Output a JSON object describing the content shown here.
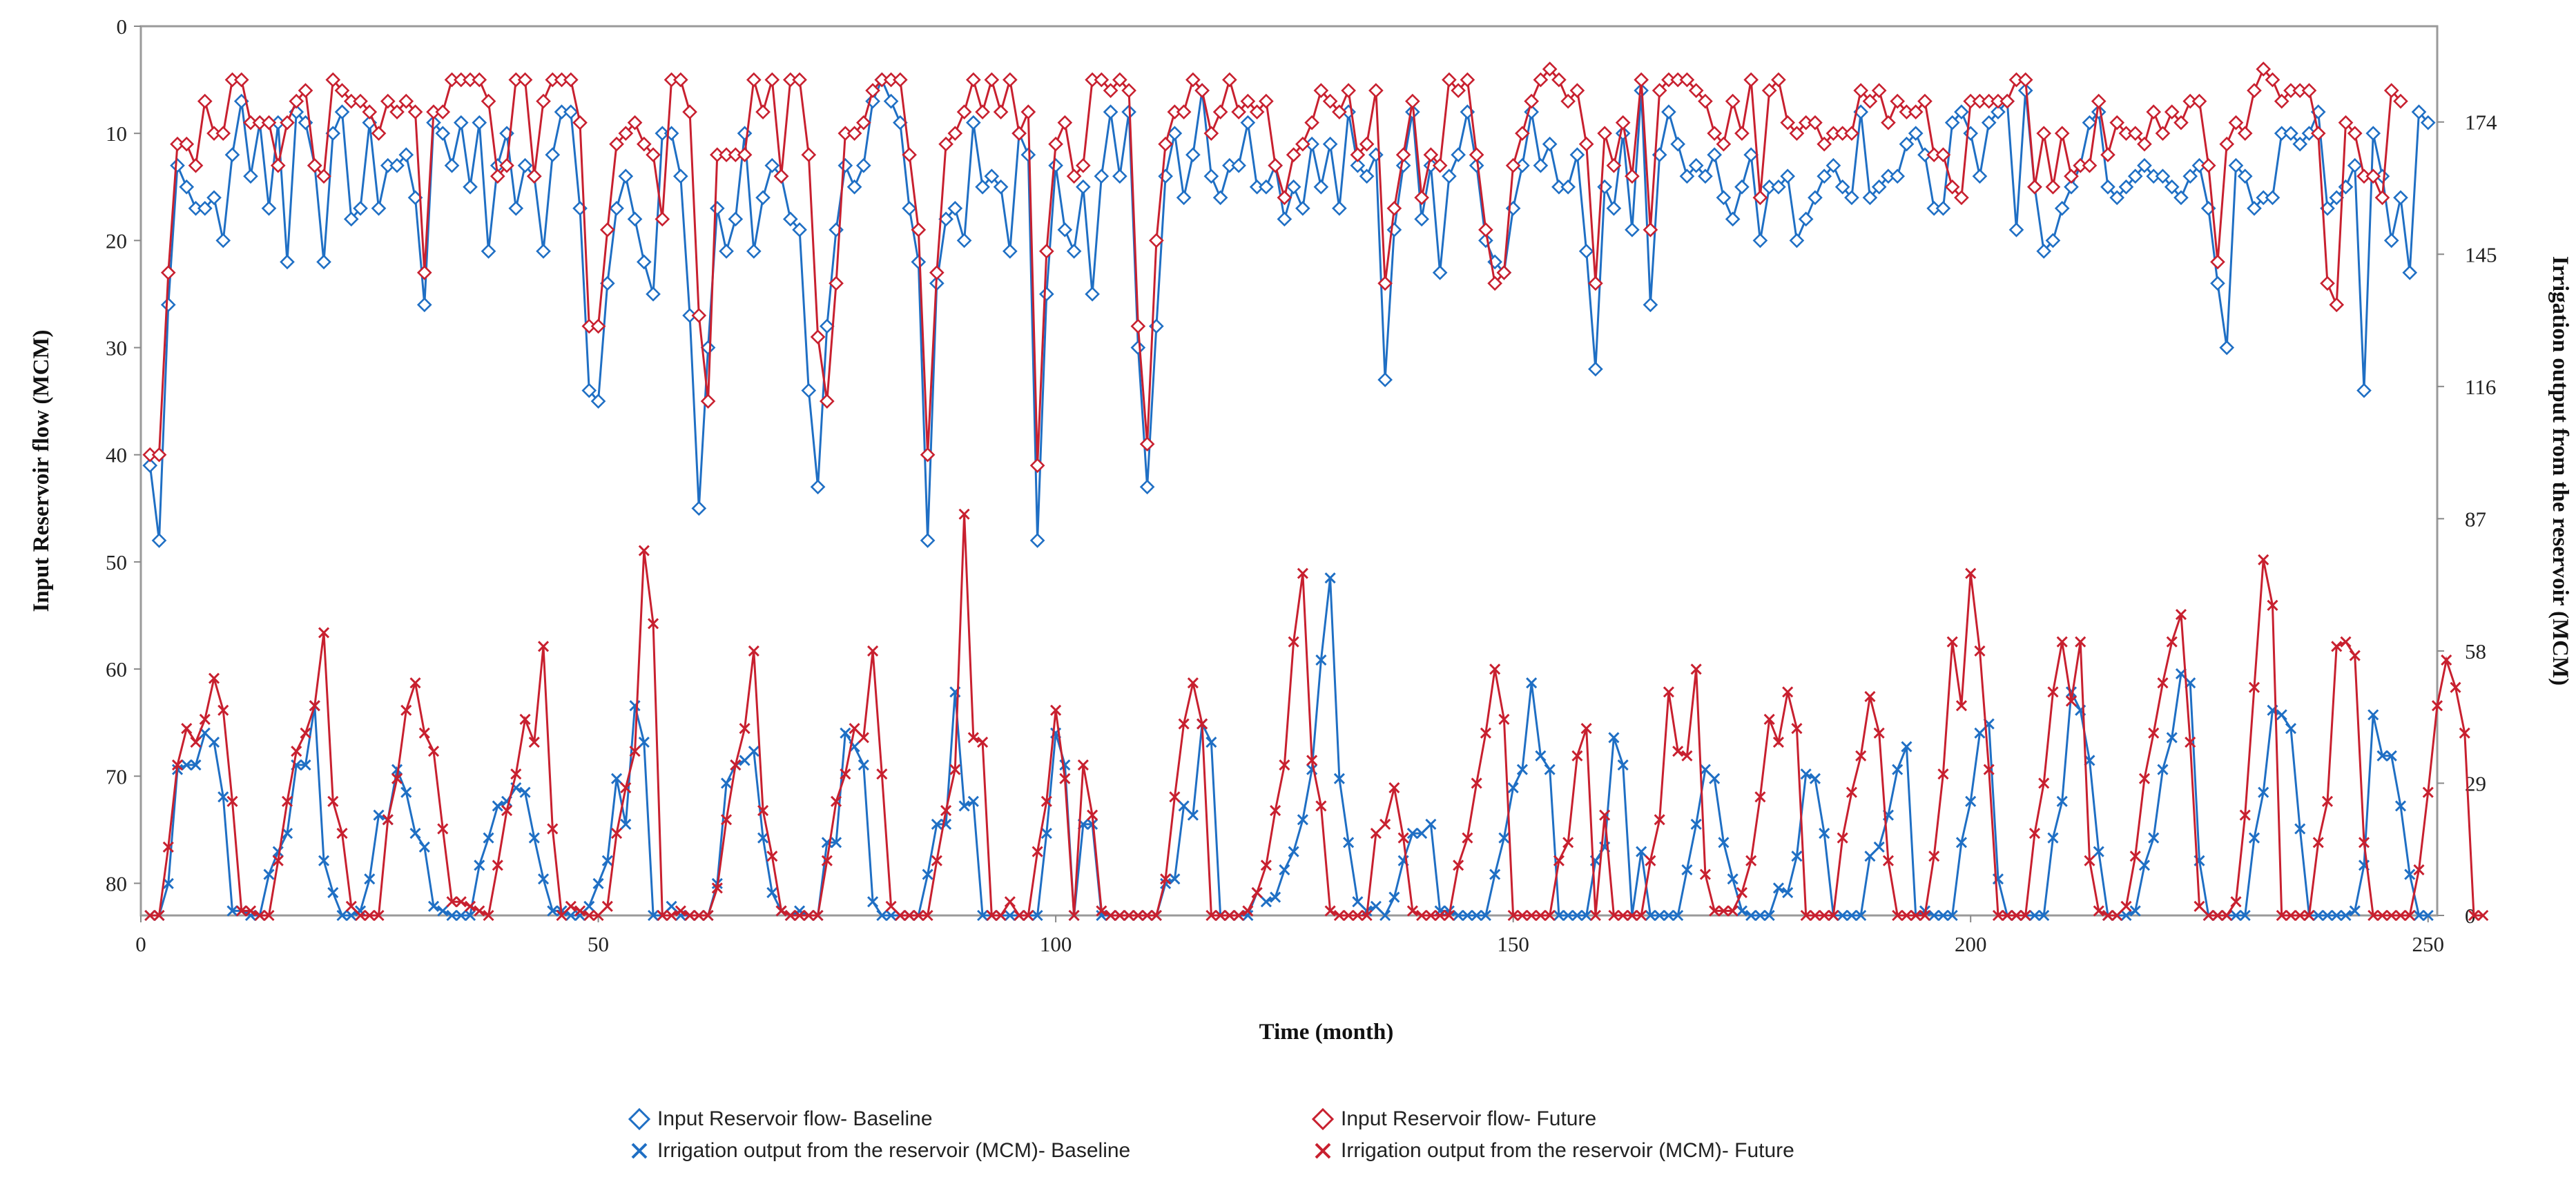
{
  "chart_data": {
    "type": "line",
    "xlabel": "Time (month)",
    "ylabel_left": "Input Reservoir  flow (MCM)",
    "ylabel_right": "Irrigation output from the reservoir (MCM)",
    "x_range": [
      0,
      251
    ],
    "x_ticks": [
      0,
      50,
      100,
      150,
      200,
      250
    ],
    "left_axis": {
      "range": [
        0,
        83
      ],
      "inverted": true,
      "ticks": [
        0,
        10,
        20,
        30,
        40,
        50,
        60,
        70,
        80
      ]
    },
    "right_axis": {
      "range": [
        0,
        195
      ],
      "inverted": false,
      "ticks": [
        0,
        29,
        58,
        87,
        116,
        145,
        174
      ]
    },
    "colors": {
      "baseline": "#1f6fc4",
      "future": "#c8202f"
    },
    "series": [
      {
        "name": "Input Reservoir flow- Baseline",
        "axis": "left",
        "marker": "diamond",
        "color": "#1f6fc4",
        "values": [
          41,
          48,
          26,
          13,
          15,
          17,
          17,
          16,
          20,
          12,
          7,
          14,
          9,
          17,
          9,
          22,
          8,
          9,
          13,
          22,
          10,
          8,
          18,
          17,
          9,
          17,
          13,
          13,
          12,
          16,
          26,
          9,
          10,
          13,
          9,
          15,
          9,
          21,
          13,
          10,
          17,
          13,
          14,
          21,
          12,
          8,
          8,
          17,
          34,
          35,
          24,
          17,
          14,
          18,
          22,
          25,
          10,
          10,
          14,
          27,
          45,
          30,
          17,
          21,
          18,
          10,
          21,
          16,
          13,
          14,
          18,
          19,
          34,
          43,
          28,
          19,
          13,
          15,
          13,
          7,
          5,
          7,
          9,
          17,
          22,
          48,
          24,
          18,
          17,
          20,
          9,
          15,
          14,
          15,
          21,
          10,
          12,
          48,
          25,
          13,
          19,
          21,
          15,
          25,
          14,
          8,
          14,
          8,
          30,
          43,
          28,
          14,
          10,
          16,
          12,
          6,
          14,
          16,
          13,
          13,
          9,
          15,
          15,
          13,
          18,
          15,
          17,
          11,
          15,
          11,
          17,
          8,
          13,
          14,
          12,
          33,
          19,
          13,
          8,
          18,
          13,
          23,
          14,
          12,
          8,
          13,
          20,
          22,
          23,
          17,
          13,
          8,
          13,
          11,
          15,
          15,
          12,
          21,
          32,
          15,
          17,
          10,
          19,
          6,
          26,
          12,
          8,
          11,
          14,
          13,
          14,
          12,
          16,
          18,
          15,
          12,
          20,
          15,
          15,
          14,
          20,
          18,
          16,
          14,
          13,
          15,
          16,
          8,
          16,
          15,
          14,
          14,
          11,
          10,
          12,
          17,
          17,
          9,
          8,
          10,
          14,
          9,
          8,
          7,
          19,
          6,
          15,
          21,
          20,
          17,
          15,
          13,
          9,
          8,
          15,
          16,
          15,
          14,
          13,
          14,
          14,
          15,
          16,
          14,
          13,
          17,
          24,
          30,
          13,
          14,
          17,
          16,
          16,
          10,
          10,
          11,
          10,
          8,
          17,
          16,
          15,
          13,
          34,
          10,
          14,
          20,
          16,
          23,
          8,
          9
        ]
      },
      {
        "name": "Input Reservoir flow- Future",
        "axis": "left",
        "marker": "diamond",
        "color": "#c8202f",
        "values": [
          40,
          40,
          23,
          11,
          11,
          13,
          7,
          10,
          10,
          5,
          5,
          9,
          9,
          9,
          13,
          9,
          7,
          6,
          13,
          14,
          5,
          6,
          7,
          7,
          8,
          10,
          7,
          8,
          7,
          8,
          23,
          8,
          8,
          5,
          5,
          5,
          5,
          7,
          14,
          13,
          5,
          5,
          14,
          7,
          5,
          5,
          5,
          9,
          28,
          28,
          19,
          11,
          10,
          9,
          11,
          12,
          18,
          5,
          5,
          8,
          27,
          35,
          12,
          12,
          12,
          12,
          5,
          8,
          5,
          14,
          5,
          5,
          12,
          29,
          35,
          24,
          10,
          10,
          9,
          6,
          5,
          5,
          5,
          12,
          19,
          40,
          23,
          11,
          10,
          8,
          5,
          8,
          5,
          8,
          5,
          10,
          8,
          41,
          21,
          11,
          9,
          14,
          13,
          5,
          5,
          6,
          5,
          6,
          28,
          39,
          20,
          11,
          8,
          8,
          5,
          6,
          10,
          8,
          5,
          8,
          7,
          8,
          7,
          13,
          16,
          12,
          11,
          9,
          6,
          7,
          8,
          6,
          12,
          11,
          6,
          24,
          17,
          12,
          7,
          16,
          12,
          13,
          5,
          6,
          5,
          12,
          19,
          24,
          23,
          13,
          10,
          7,
          5,
          4,
          5,
          7,
          6,
          11,
          24,
          10,
          13,
          9,
          14,
          5,
          19,
          6,
          5,
          5,
          5,
          6,
          7,
          10,
          11,
          7,
          10,
          5,
          16,
          6,
          5,
          9,
          10,
          9,
          9,
          11,
          10,
          10,
          10,
          6,
          7,
          6,
          9,
          7,
          8,
          8,
          7,
          12,
          12,
          15,
          16,
          7,
          7,
          7,
          7,
          7,
          5,
          5,
          15,
          10,
          15,
          10,
          14,
          13,
          13,
          7,
          12,
          9,
          10,
          10,
          11,
          8,
          10,
          8,
          9,
          7,
          7,
          13,
          22,
          11,
          9,
          10,
          6,
          4,
          5,
          7,
          6,
          6,
          6,
          10,
          24,
          26,
          9,
          10,
          14,
          14,
          16,
          6,
          7
        ]
      },
      {
        "name": "Irrigation output from the reservoir (MCM)- Baseline",
        "axis": "right",
        "marker": "x",
        "color": "#1f6fc4",
        "values": [
          0,
          0,
          7,
          32,
          33,
          33,
          40,
          38,
          26,
          1,
          1,
          0,
          0,
          9,
          14,
          18,
          33,
          33,
          46,
          12,
          5,
          0,
          0,
          1,
          8,
          22,
          21,
          32,
          27,
          18,
          15,
          2,
          1,
          0,
          0,
          0,
          11,
          17,
          24,
          25,
          28,
          27,
          17,
          8,
          1,
          1,
          0,
          0,
          2,
          7,
          12,
          30,
          20,
          46,
          38,
          0,
          0,
          2,
          0,
          0,
          0,
          0,
          7,
          29,
          33,
          34,
          36,
          17,
          5,
          1,
          0,
          1,
          0,
          0,
          16,
          16,
          40,
          37,
          33,
          3,
          0,
          0,
          0,
          0,
          0,
          9,
          20,
          20,
          49,
          24,
          25,
          0,
          0,
          0,
          0,
          0,
          0,
          0,
          18,
          40,
          33,
          0,
          20,
          20,
          0,
          0,
          0,
          0,
          0,
          0,
          0,
          7,
          8,
          24,
          22,
          42,
          38,
          0,
          0,
          0,
          0,
          5,
          3,
          4,
          10,
          14,
          21,
          32,
          56,
          74,
          30,
          16,
          3,
          1,
          2,
          0,
          4,
          12,
          18,
          18,
          20,
          1,
          1,
          0,
          0,
          0,
          0,
          9,
          17,
          28,
          32,
          51,
          35,
          32,
          0,
          0,
          0,
          0,
          12,
          15,
          39,
          33,
          0,
          14,
          0,
          0,
          0,
          0,
          10,
          20,
          32,
          30,
          16,
          8,
          1,
          0,
          0,
          0,
          6,
          5,
          13,
          31,
          30,
          18,
          0,
          0,
          0,
          0,
          13,
          15,
          22,
          32,
          37,
          0,
          1,
          0,
          0,
          0,
          16,
          25,
          40,
          42,
          8,
          0,
          0,
          0,
          0,
          0,
          17,
          25,
          49,
          45,
          34,
          14,
          0,
          0,
          0,
          1,
          11,
          17,
          32,
          39,
          53,
          51,
          12,
          0,
          0,
          0,
          0,
          0,
          17,
          27,
          45,
          44,
          41,
          19,
          0,
          0,
          0,
          0,
          0,
          1,
          11,
          44,
          35,
          35,
          24,
          9,
          0,
          0
        ]
      },
      {
        "name": "Irrigation output from the reservoir (MCM)- Future",
        "axis": "right",
        "marker": "x",
        "color": "#c8202f",
        "values": [
          0,
          0,
          15,
          33,
          41,
          38,
          43,
          52,
          45,
          25,
          1,
          1,
          0,
          0,
          12,
          25,
          36,
          40,
          46,
          62,
          25,
          18,
          2,
          0,
          0,
          0,
          21,
          30,
          45,
          51,
          40,
          36,
          19,
          3,
          3,
          2,
          1,
          0,
          11,
          23,
          31,
          43,
          38,
          59,
          19,
          0,
          2,
          1,
          0,
          0,
          2,
          18,
          28,
          36,
          80,
          64,
          0,
          0,
          1,
          0,
          0,
          0,
          6,
          21,
          33,
          41,
          58,
          23,
          13,
          1,
          0,
          0,
          0,
          0,
          12,
          25,
          31,
          41,
          39,
          58,
          31,
          2,
          0,
          0,
          0,
          0,
          12,
          23,
          32,
          88,
          39,
          38,
          0,
          0,
          3,
          0,
          0,
          14,
          25,
          45,
          30,
          0,
          33,
          22,
          1,
          0,
          0,
          0,
          0,
          0,
          0,
          8,
          26,
          42,
          51,
          42,
          0,
          0,
          0,
          0,
          1,
          5,
          11,
          23,
          33,
          60,
          75,
          34,
          24,
          1,
          0,
          0,
          0,
          0,
          18,
          20,
          28,
          17,
          1,
          0,
          0,
          0,
          0,
          11,
          17,
          29,
          40,
          54,
          43,
          0,
          0,
          0,
          0,
          0,
          12,
          16,
          35,
          41,
          0,
          22,
          0,
          0,
          0,
          0,
          12,
          21,
          49,
          36,
          35,
          54,
          9,
          1,
          1,
          1,
          5,
          12,
          26,
          43,
          38,
          49,
          41,
          0,
          0,
          0,
          0,
          17,
          27,
          35,
          48,
          40,
          12,
          0,
          0,
          0,
          0,
          13,
          31,
          60,
          46,
          75,
          58,
          32,
          0,
          0,
          0,
          0,
          18,
          29,
          49,
          60,
          47,
          60,
          12,
          1,
          0,
          0,
          2,
          13,
          30,
          40,
          51,
          60,
          66,
          38,
          2,
          0,
          0,
          0,
          3,
          22,
          50,
          78,
          68,
          0,
          0,
          0,
          0,
          16,
          25,
          59,
          60,
          57,
          16,
          0,
          0,
          0,
          0,
          0,
          10,
          27,
          46,
          56,
          50,
          40,
          0,
          0
        ]
      }
    ],
    "legend": [
      {
        "label": "Input Reservoir flow- Baseline",
        "marker": "diamond",
        "color": "#1f6fc4"
      },
      {
        "label": "Irrigation output from the reservoir (MCM)- Baseline",
        "marker": "x",
        "color": "#1f6fc4"
      },
      {
        "label": "Input Reservoir flow- Future",
        "marker": "diamond",
        "color": "#c8202f"
      },
      {
        "label": "Irrigation output from the reservoir (MCM)- Future",
        "marker": "x",
        "color": "#c8202f"
      }
    ]
  }
}
